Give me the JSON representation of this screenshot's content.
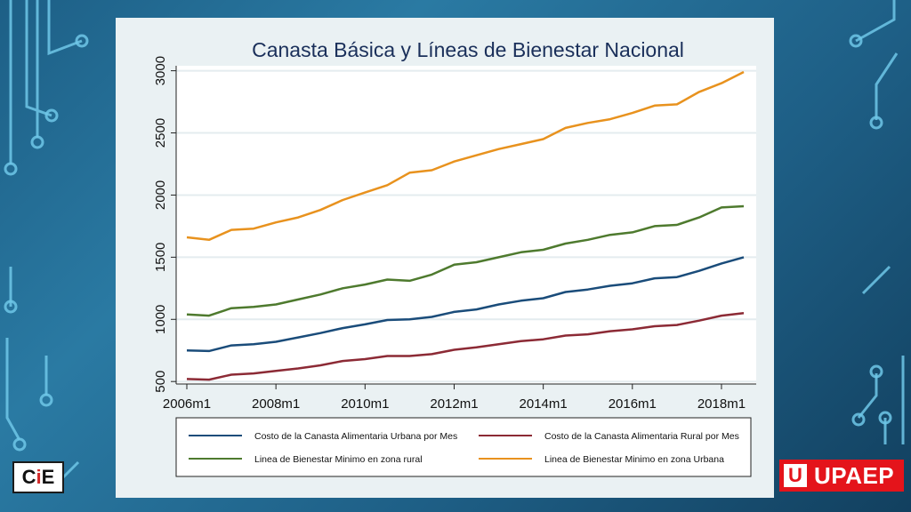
{
  "chart_data": {
    "type": "line",
    "title": "Canasta Básica y Líneas de Bienestar Nacional",
    "xlabel": "",
    "ylabel": "",
    "x_ticks": [
      "2006m1",
      "2008m1",
      "2010m1",
      "2012m1",
      "2014m1",
      "2016m1",
      "2018m1"
    ],
    "y_ticks": [
      "500",
      "1000",
      "1500",
      "2000",
      "2500",
      "3000"
    ],
    "y_tick_values": [
      500,
      1000,
      1500,
      2000,
      2500,
      3000
    ],
    "xlim": [
      "2006m1",
      "2018m7"
    ],
    "ylim": [
      480,
      3040
    ],
    "grid": true,
    "legend_position": "bottom",
    "x": [
      "2006m1",
      "2006m7",
      "2007m1",
      "2007m7",
      "2008m1",
      "2008m7",
      "2009m1",
      "2009m7",
      "2010m1",
      "2010m7",
      "2011m1",
      "2011m7",
      "2012m1",
      "2012m7",
      "2013m1",
      "2013m7",
      "2014m1",
      "2014m7",
      "2015m1",
      "2015m7",
      "2016m1",
      "2016m7",
      "2017m1",
      "2017m7",
      "2018m1",
      "2018m7"
    ],
    "series": [
      {
        "name": "Costo de la Canasta Alimentaria Urbana por Mes",
        "color": "#1a4c7a",
        "values": [
          750,
          745,
          790,
          800,
          820,
          855,
          890,
          930,
          960,
          995,
          1000,
          1020,
          1060,
          1080,
          1120,
          1150,
          1170,
          1220,
          1240,
          1270,
          1290,
          1330,
          1340,
          1390,
          1450,
          1500
        ]
      },
      {
        "name": "Costo de la Canasta Alimentaria Rural por Mes",
        "color": "#8c2a35",
        "values": [
          520,
          515,
          555,
          565,
          585,
          605,
          630,
          665,
          680,
          705,
          705,
          720,
          755,
          775,
          800,
          825,
          840,
          870,
          880,
          905,
          920,
          945,
          955,
          990,
          1030,
          1050
        ]
      },
      {
        "name": "Linea de Bienestar Minimo en zona rural",
        "color": "#4e7a2e",
        "values": [
          1040,
          1030,
          1090,
          1100,
          1120,
          1160,
          1200,
          1250,
          1280,
          1320,
          1310,
          1360,
          1440,
          1460,
          1500,
          1540,
          1560,
          1610,
          1640,
          1680,
          1700,
          1750,
          1760,
          1820,
          1900,
          1910
        ]
      },
      {
        "name": "Linea de Bienestar Minimo en zona Urbana",
        "color": "#e8921e",
        "values": [
          1660,
          1640,
          1720,
          1730,
          1780,
          1820,
          1880,
          1960,
          2020,
          2080,
          2180,
          2200,
          2270,
          2320,
          2370,
          2410,
          2450,
          2540,
          2580,
          2610,
          2660,
          2720,
          2730,
          2830,
          2900,
          2990
        ]
      }
    ]
  },
  "logos": {
    "left_brand": "CIE",
    "right_brand": "UPAEP",
    "right_mark": "U"
  }
}
